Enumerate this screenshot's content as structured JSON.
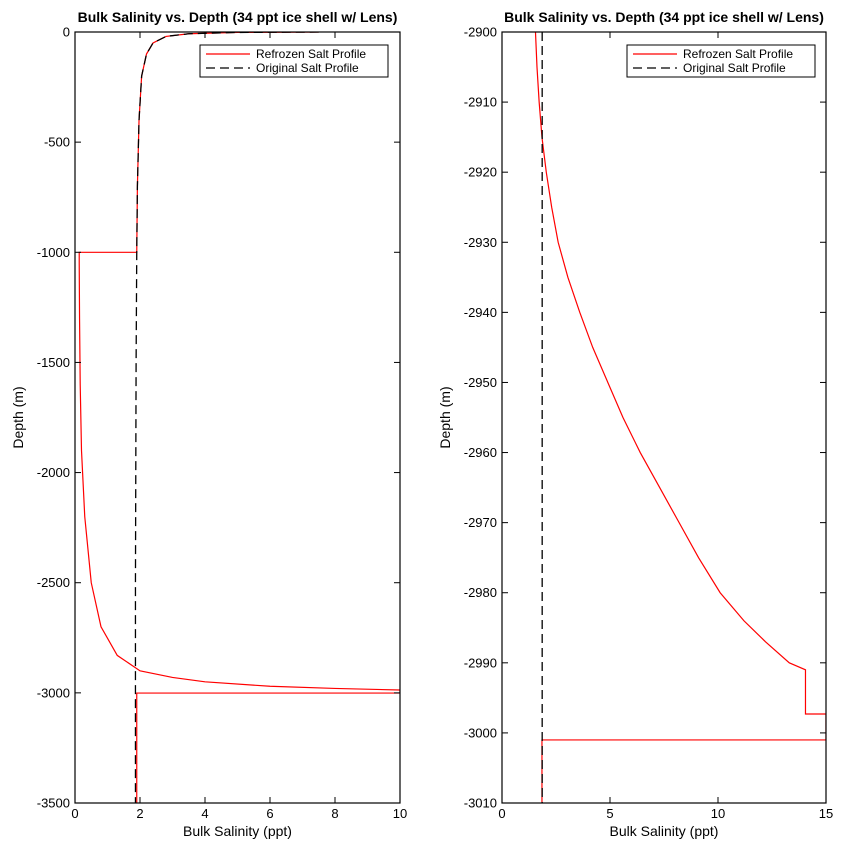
{
  "chart_data": [
    {
      "type": "line",
      "title": "Bulk Salinity vs. Depth (34 ppt ice shell w/ Lens)",
      "xlabel": "Bulk Salinity (ppt)",
      "ylabel": "Depth (m)",
      "xlim": [
        0,
        10
      ],
      "ylim": [
        -3500,
        0
      ],
      "xticks": [
        0,
        2,
        4,
        6,
        8,
        10
      ],
      "yticks": [
        -3500,
        -3000,
        -2500,
        -2000,
        -1500,
        -1000,
        -500,
        0
      ],
      "grid": false,
      "legend_position": "top-right",
      "series": [
        {
          "name": "Refrozen Salt Profile",
          "color": "#ff0000",
          "style": "solid",
          "points": [
            [
              7.5,
              0
            ],
            [
              5.0,
              -2
            ],
            [
              3.5,
              -8
            ],
            [
              2.8,
              -20
            ],
            [
              2.4,
              -50
            ],
            [
              2.2,
              -100
            ],
            [
              2.05,
              -200
            ],
            [
              1.97,
              -400
            ],
            [
              1.92,
              -700
            ],
            [
              1.9,
              -1000
            ],
            [
              0.13,
              -1000
            ],
            [
              0.13,
              -1050
            ],
            [
              0.14,
              -1300
            ],
            [
              0.16,
              -1600
            ],
            [
              0.2,
              -1900
            ],
            [
              0.3,
              -2200
            ],
            [
              0.5,
              -2500
            ],
            [
              0.8,
              -2700
            ],
            [
              1.3,
              -2830
            ],
            [
              2.0,
              -2900
            ],
            [
              3.0,
              -2930
            ],
            [
              4.0,
              -2950
            ],
            [
              6.0,
              -2970
            ],
            [
              8.0,
              -2980
            ],
            [
              10.0,
              -2987
            ],
            [
              10.0,
              -3001
            ],
            [
              1.9,
              -3001
            ],
            [
              1.9,
              -3500
            ]
          ]
        },
        {
          "name": "Original Salt Profile",
          "color": "#000000",
          "style": "dashed",
          "points": [
            [
              7.5,
              0
            ],
            [
              5.0,
              -2
            ],
            [
              3.5,
              -8
            ],
            [
              2.8,
              -20
            ],
            [
              2.4,
              -50
            ],
            [
              2.2,
              -100
            ],
            [
              2.05,
              -200
            ],
            [
              1.97,
              -400
            ],
            [
              1.92,
              -700
            ],
            [
              1.9,
              -1000
            ],
            [
              1.88,
              -1500
            ],
            [
              1.87,
              -2000
            ],
            [
              1.86,
              -2500
            ],
            [
              1.86,
              -3000
            ],
            [
              1.86,
              -3500
            ]
          ]
        }
      ]
    },
    {
      "type": "line",
      "title": "Bulk Salinity vs. Depth (34 ppt ice shell w/ Lens)",
      "xlabel": "Bulk Salinity (ppt)",
      "ylabel": "Depth (m)",
      "xlim": [
        0,
        15
      ],
      "ylim": [
        -3010,
        -2900
      ],
      "xticks": [
        0,
        5,
        10,
        15
      ],
      "yticks": [
        -3010,
        -3000,
        -2990,
        -2980,
        -2970,
        -2960,
        -2950,
        -2940,
        -2930,
        -2920,
        -2910,
        -2900
      ],
      "grid": false,
      "legend_position": "top-right",
      "series": [
        {
          "name": "Refrozen Salt Profile",
          "color": "#ff0000",
          "style": "solid",
          "points": [
            [
              1.55,
              -2900
            ],
            [
              1.62,
              -2905
            ],
            [
              1.72,
              -2910
            ],
            [
              1.85,
              -2915
            ],
            [
              2.05,
              -2920
            ],
            [
              2.3,
              -2925
            ],
            [
              2.6,
              -2930
            ],
            [
              3.05,
              -2935
            ],
            [
              3.6,
              -2940
            ],
            [
              4.2,
              -2945
            ],
            [
              4.9,
              -2950
            ],
            [
              5.6,
              -2955
            ],
            [
              6.4,
              -2960
            ],
            [
              7.3,
              -2965
            ],
            [
              8.2,
              -2970
            ],
            [
              9.1,
              -2975
            ],
            [
              10.1,
              -2980
            ],
            [
              11.2,
              -2984
            ],
            [
              12.2,
              -2987
            ],
            [
              13.3,
              -2990
            ],
            [
              14.05,
              -2991
            ],
            [
              14.05,
              -2997.3
            ],
            [
              15,
              -2997.3
            ],
            [
              15,
              -3001
            ],
            [
              1.85,
              -3001
            ],
            [
              1.85,
              -3010
            ]
          ]
        },
        {
          "name": "Original Salt Profile",
          "color": "#000000",
          "style": "dashed",
          "points": [
            [
              1.86,
              -2900
            ],
            [
              1.86,
              -3010
            ]
          ]
        }
      ]
    }
  ]
}
